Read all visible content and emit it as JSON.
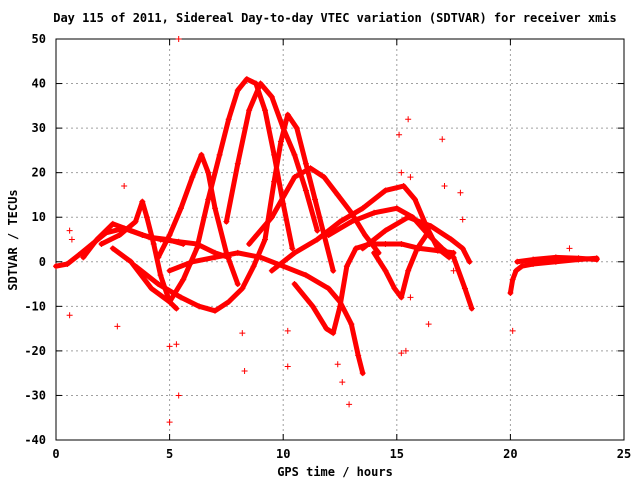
{
  "chart_data": {
    "type": "scatter",
    "title": "Day 115 of 2011, Sidereal Day-to-day VTEC variation (SDTVAR) for receiver xmis",
    "xlabel": "GPS time / hours",
    "ylabel": "SDTVAR / TECUs",
    "xlim": [
      0,
      25
    ],
    "ylim": [
      -40,
      50
    ],
    "xticks": [
      0,
      5,
      10,
      15,
      20,
      25
    ],
    "yticks": [
      -40,
      -30,
      -20,
      -10,
      0,
      10,
      20,
      30,
      40,
      50
    ],
    "grid": true,
    "marker": "+",
    "color": "#ff0000",
    "tracks": [
      [
        [
          0.0,
          -1.0
        ],
        [
          0.5,
          -0.5
        ],
        [
          1.0,
          1.5
        ],
        [
          1.6,
          4.0
        ],
        [
          2.2,
          6.5
        ],
        [
          3.0,
          7.5
        ],
        [
          3.8,
          6.0
        ],
        [
          4.6,
          5.0
        ],
        [
          5.4,
          4.5
        ],
        [
          6.2,
          4.0
        ],
        [
          7.0,
          2.0
        ],
        [
          7.6,
          1.0
        ]
      ],
      [
        [
          1.2,
          1.0
        ],
        [
          1.8,
          5.0
        ],
        [
          2.5,
          8.5
        ],
        [
          3.3,
          7.0
        ],
        [
          4.1,
          5.5
        ],
        [
          4.9,
          5.0
        ],
        [
          5.6,
          4.0
        ]
      ],
      [
        [
          2.0,
          4.0
        ],
        [
          2.8,
          6.0
        ],
        [
          3.5,
          9.0
        ],
        [
          3.8,
          13.5
        ],
        [
          4.0,
          10.0
        ],
        [
          4.3,
          4.0
        ],
        [
          4.6,
          -3.0
        ],
        [
          5.0,
          -9.0
        ],
        [
          5.3,
          -10.5
        ]
      ],
      [
        [
          2.5,
          3.0
        ],
        [
          3.3,
          0.0
        ],
        [
          4.2,
          -6.0
        ],
        [
          5.0,
          -9.0
        ],
        [
          5.6,
          -4.0
        ],
        [
          6.2,
          3.0
        ],
        [
          6.7,
          14.0
        ],
        [
          7.2,
          24.0
        ],
        [
          7.6,
          32.0
        ],
        [
          8.0,
          38.5
        ],
        [
          8.4,
          41.0
        ],
        [
          8.8,
          40.0
        ],
        [
          9.2,
          34.0
        ],
        [
          9.6,
          24.0
        ],
        [
          10.0,
          13.0
        ],
        [
          10.4,
          3.0
        ]
      ],
      [
        [
          4.5,
          1.0
        ],
        [
          5.0,
          6.0
        ],
        [
          5.5,
          12.0
        ],
        [
          6.0,
          19.0
        ],
        [
          6.4,
          24.0
        ],
        [
          6.7,
          20.0
        ],
        [
          7.0,
          12.0
        ],
        [
          7.5,
          2.0
        ],
        [
          8.0,
          -5.0
        ]
      ],
      [
        [
          3.5,
          -1.0
        ],
        [
          4.5,
          -5.0
        ],
        [
          5.5,
          -8.0
        ],
        [
          6.3,
          -10.0
        ],
        [
          7.0,
          -11.0
        ],
        [
          7.6,
          -9.0
        ],
        [
          8.2,
          -6.0
        ],
        [
          8.7,
          -1.0
        ],
        [
          9.2,
          5.0
        ],
        [
          9.6,
          18.0
        ],
        [
          9.9,
          27.0
        ],
        [
          10.2,
          33.0
        ],
        [
          10.6,
          30.0
        ],
        [
          11.0,
          22.0
        ],
        [
          11.4,
          14.0
        ],
        [
          11.8,
          6.0
        ],
        [
          12.2,
          -2.0
        ]
      ],
      [
        [
          7.5,
          9.0
        ],
        [
          8.0,
          22.0
        ],
        [
          8.5,
          34.0
        ],
        [
          9.0,
          40.0
        ],
        [
          9.5,
          37.0
        ],
        [
          10.0,
          30.0
        ],
        [
          10.5,
          24.0
        ],
        [
          11.0,
          16.0
        ],
        [
          11.5,
          7.0
        ]
      ],
      [
        [
          5.0,
          -2.0
        ],
        [
          6.0,
          0.0
        ],
        [
          7.0,
          1.0
        ],
        [
          8.0,
          2.0
        ],
        [
          9.0,
          1.0
        ],
        [
          10.0,
          -1.0
        ],
        [
          11.0,
          -3.0
        ],
        [
          12.0,
          -6.0
        ],
        [
          12.5,
          -9.0
        ],
        [
          13.0,
          -14.0
        ],
        [
          13.3,
          -21.0
        ],
        [
          13.5,
          -25.0
        ]
      ],
      [
        [
          8.5,
          4.0
        ],
        [
          9.5,
          10.0
        ],
        [
          10.5,
          19.0
        ],
        [
          11.2,
          21.0
        ],
        [
          11.8,
          19.0
        ],
        [
          12.4,
          15.0
        ],
        [
          13.0,
          11.0
        ],
        [
          13.6,
          6.0
        ],
        [
          14.2,
          2.0
        ]
      ],
      [
        [
          9.5,
          -2.0
        ],
        [
          10.5,
          2.0
        ],
        [
          11.5,
          5.0
        ],
        [
          12.5,
          9.0
        ],
        [
          13.5,
          12.0
        ],
        [
          14.5,
          16.0
        ],
        [
          15.3,
          17.0
        ],
        [
          15.8,
          14.0
        ],
        [
          16.3,
          8.0
        ],
        [
          16.8,
          3.0
        ],
        [
          17.3,
          1.0
        ]
      ],
      [
        [
          10.5,
          -5.0
        ],
        [
          11.3,
          -10.0
        ],
        [
          11.9,
          -15.0
        ],
        [
          12.2,
          -16.0
        ],
        [
          12.5,
          -10.0
        ],
        [
          12.8,
          -1.0
        ],
        [
          13.2,
          3.0
        ],
        [
          13.8,
          4.0
        ],
        [
          14.5,
          4.0
        ],
        [
          15.2,
          4.0
        ],
        [
          16.0,
          3.0
        ],
        [
          16.8,
          2.5
        ],
        [
          17.5,
          2.0
        ]
      ],
      [
        [
          12.0,
          6.0
        ],
        [
          13.0,
          9.0
        ],
        [
          14.0,
          11.0
        ],
        [
          15.0,
          12.0
        ],
        [
          15.7,
          10.0
        ],
        [
          16.4,
          6.0
        ],
        [
          17.0,
          3.0
        ],
        [
          17.5,
          1.0
        ],
        [
          18.0,
          -6.0
        ],
        [
          18.3,
          -10.5
        ]
      ],
      [
        [
          14.0,
          2.0
        ],
        [
          14.5,
          -2.0
        ],
        [
          14.9,
          -6.0
        ],
        [
          15.2,
          -8.0
        ],
        [
          15.5,
          -2.0
        ],
        [
          15.9,
          3.0
        ],
        [
          16.3,
          6.0
        ]
      ],
      [
        [
          13.5,
          3.0
        ],
        [
          14.5,
          7.0
        ],
        [
          15.5,
          10.0
        ],
        [
          16.5,
          8.0
        ],
        [
          17.4,
          5.0
        ],
        [
          17.9,
          3.0
        ],
        [
          18.2,
          0.0
        ]
      ],
      [
        [
          20.0,
          -7.0
        ],
        [
          20.1,
          -4.0
        ],
        [
          20.25,
          -2.0
        ],
        [
          20.5,
          -1.0
        ],
        [
          21.0,
          -0.5
        ],
        [
          22.0,
          0.0
        ],
        [
          23.0,
          0.5
        ],
        [
          23.8,
          0.8
        ]
      ],
      [
        [
          20.3,
          0.0
        ],
        [
          21.0,
          0.5
        ],
        [
          22.0,
          1.0
        ],
        [
          23.0,
          0.8
        ],
        [
          23.8,
          0.5
        ]
      ]
    ],
    "outliers": [
      [
        5.4,
        50
      ],
      [
        0.6,
        -12
      ],
      [
        0.6,
        7
      ],
      [
        0.7,
        5
      ],
      [
        2.7,
        -14.5
      ],
      [
        3.0,
        17
      ],
      [
        5.0,
        -19
      ],
      [
        5.0,
        -36
      ],
      [
        5.3,
        -18.5
      ],
      [
        5.4,
        -30
      ],
      [
        8.2,
        -16
      ],
      [
        8.3,
        -24.5
      ],
      [
        10.2,
        -15.5
      ],
      [
        10.2,
        -23.5
      ],
      [
        12.4,
        -23
      ],
      [
        12.6,
        -27
      ],
      [
        12.9,
        -32
      ],
      [
        15.1,
        28.5
      ],
      [
        15.2,
        20
      ],
      [
        15.5,
        32
      ],
      [
        15.6,
        19
      ],
      [
        15.2,
        -20.5
      ],
      [
        15.4,
        -20
      ],
      [
        15.6,
        -8
      ],
      [
        16.4,
        -14
      ],
      [
        17.0,
        27.5
      ],
      [
        17.1,
        17
      ],
      [
        17.8,
        15.5
      ],
      [
        17.9,
        9.5
      ],
      [
        17.5,
        -2
      ],
      [
        20.1,
        -15.5
      ],
      [
        22.6,
        3
      ]
    ]
  }
}
